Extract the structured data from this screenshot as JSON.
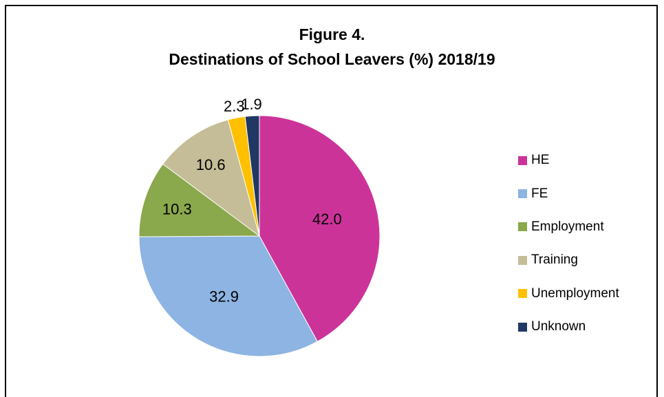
{
  "chart_data": {
    "type": "pie",
    "title": "Figure 4.",
    "subtitle": "Destinations of School Leavers (%) 2018/19",
    "categories": [
      "HE",
      "FE",
      "Employment",
      "Training",
      "Unemployment",
      "Unknown"
    ],
    "values": [
      42.0,
      32.9,
      10.3,
      10.6,
      2.3,
      1.9
    ],
    "value_labels": [
      "42.0",
      "32.9",
      "10.3",
      "10.6",
      "2.3",
      "1.9"
    ],
    "colors": [
      "#cc3399",
      "#8db4e2",
      "#8aa84c",
      "#c4bd97",
      "#ffc000",
      "#1f3864"
    ],
    "legend_position": "right",
    "start_angle_deg": 0,
    "direction": "clockwise"
  }
}
